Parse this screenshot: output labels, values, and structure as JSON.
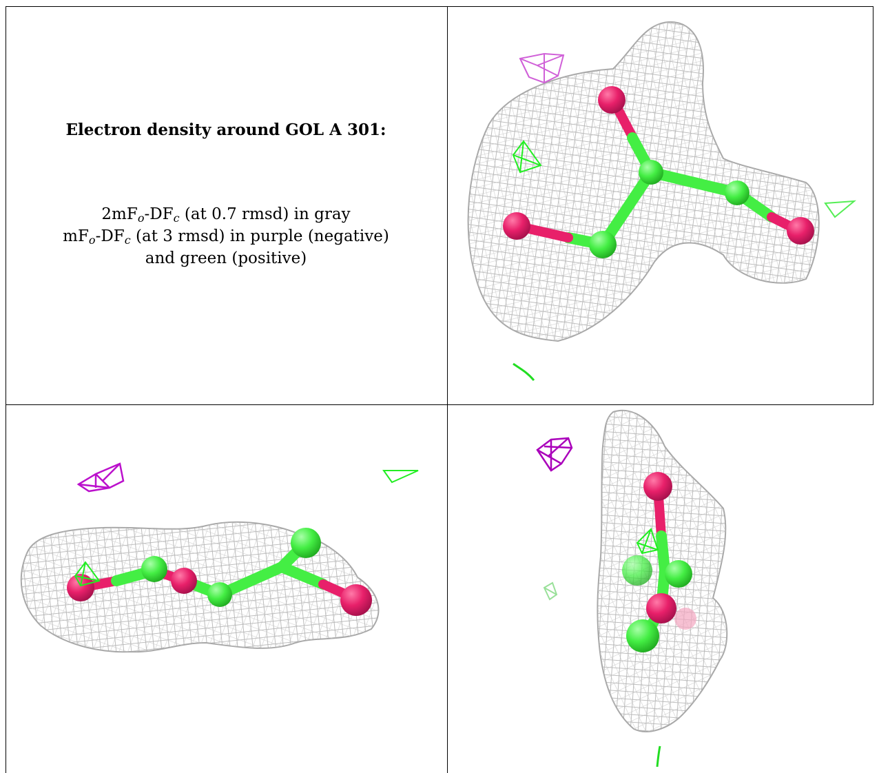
{
  "caption": {
    "title": "Electron density around GOL A 301:",
    "line1": {
      "p1": "2mF",
      "s1": "o",
      "p2": "-DF",
      "s2": "c",
      "p3": " (at 0.7 rmsd) in gray"
    },
    "line2": {
      "p1": "mF",
      "s1": "o",
      "p2": "-DF",
      "s2": "c",
      "p3": " (at 3 rmsd) in purple (negative)"
    },
    "line3": "and green (positive)"
  },
  "colors": {
    "mesh_2fofc": "#b8b8b8",
    "fofc_negative": "#cc22cc",
    "fofc_positive": "#22ee22",
    "carbon": "#44ee44",
    "oxygen": "#e8206a"
  }
}
